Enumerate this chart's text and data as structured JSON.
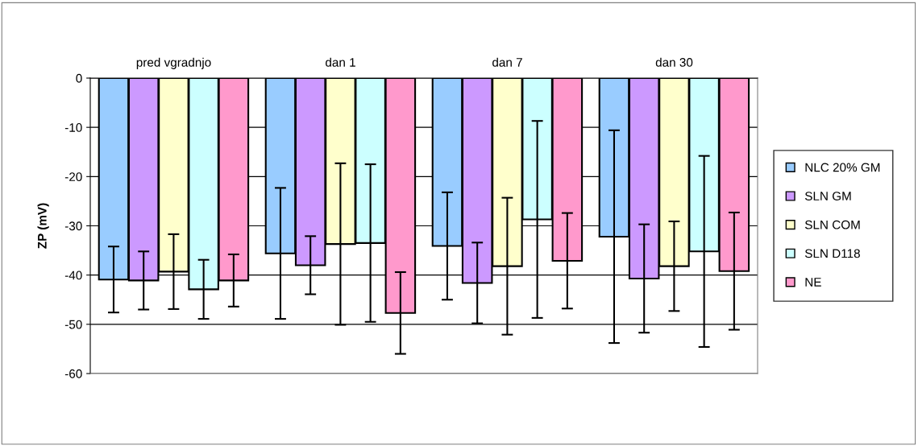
{
  "chart_data": {
    "type": "bar",
    "ylabel": "ZP (mV)",
    "categories": [
      "pred vgradnjo",
      "dan 1",
      "dan 7",
      "dan 30"
    ],
    "series": [
      {
        "name": "NLC 20% GM",
        "color": "#99ccff",
        "values": [
          -40.9,
          -35.6,
          -34.1,
          -32.2
        ],
        "errors": [
          6.7,
          13.3,
          10.9,
          21.6
        ]
      },
      {
        "name": "SLN GM",
        "color": "#cc99ff",
        "values": [
          -41.1,
          -38.0,
          -41.6,
          -40.7
        ],
        "errors": [
          5.9,
          5.9,
          8.2,
          11.0
        ]
      },
      {
        "name": "SLN COM",
        "color": "#ffffcc",
        "values": [
          -39.3,
          -33.7,
          -38.2,
          -38.2
        ],
        "errors": [
          7.6,
          16.4,
          13.9,
          9.1
        ]
      },
      {
        "name": "SLN D118",
        "color": "#ccffff",
        "values": [
          -42.9,
          -33.5,
          -28.7,
          -35.2
        ],
        "errors": [
          6.0,
          16.0,
          20.0,
          19.4
        ]
      },
      {
        "name": "NE",
        "color": "#ff99cc",
        "values": [
          -41.1,
          -47.7,
          -37.1,
          -39.2
        ],
        "errors": [
          5.3,
          8.3,
          9.7,
          11.9
        ]
      }
    ],
    "ylim": [
      -60,
      0
    ],
    "yticks": [
      -60,
      -50,
      -40,
      -30,
      -20,
      -10,
      0
    ],
    "grid": "y",
    "legend": "right"
  }
}
